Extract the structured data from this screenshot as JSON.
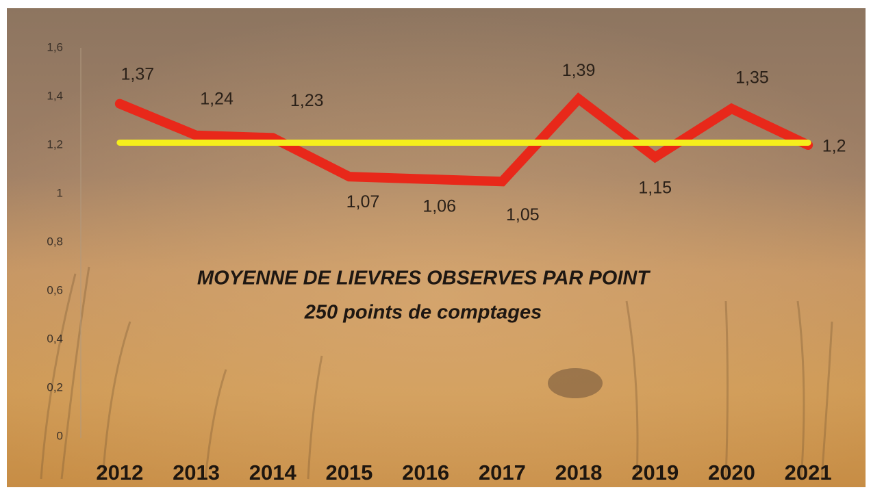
{
  "chart_data": {
    "type": "line",
    "title": "MOYENNE DE LIEVRES OBSERVES PAR POINT",
    "subtitle": "250 points de comptages",
    "categories": [
      "2012",
      "2013",
      "2014",
      "2015",
      "2016",
      "2017",
      "2018",
      "2019",
      "2020",
      "2021"
    ],
    "series": [
      {
        "color": "#e8281a",
        "values": [
          1.37,
          1.24,
          1.23,
          1.07,
          1.06,
          1.05,
          1.39,
          1.15,
          1.35,
          1.2
        ],
        "value_labels": [
          "1,37",
          "1,24",
          "1,23",
          "1,07",
          "1,06",
          "1,05",
          "1,39",
          "1,15",
          "1,35",
          "1,2"
        ]
      },
      {
        "color": "#f5ee1c",
        "values": [
          1.21,
          1.21,
          1.21,
          1.21,
          1.21,
          1.21,
          1.21,
          1.21,
          1.21,
          1.21
        ]
      }
    ],
    "ylim": [
      0,
      1.6
    ],
    "yticks": [
      0,
      {
        "value": 0.2,
        "label": "0,2"
      },
      {
        "value": 0.4,
        "label": "0,4"
      },
      {
        "value": 0.6,
        "label": "0,6"
      },
      {
        "value": 0.8,
        "label": "0,8"
      },
      1,
      {
        "value": 1.2,
        "label": "1,2"
      },
      {
        "value": 1.4,
        "label": "1,4"
      },
      {
        "value": 1.6,
        "label": "1,6"
      }
    ],
    "grid": false
  }
}
